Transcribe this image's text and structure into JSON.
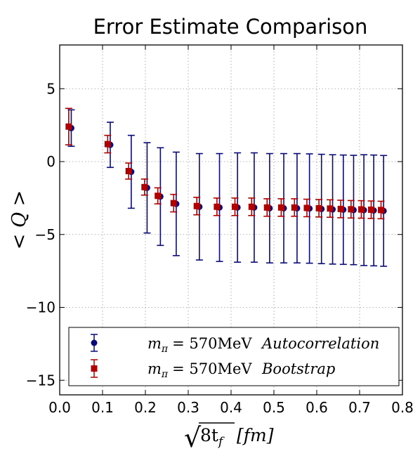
{
  "chart_data": {
    "type": "scatter",
    "title": "Error Estimate Comparison",
    "xlabel": "√8t_f [fm]",
    "xlabel_parts": {
      "radical": "√",
      "radicand": "8t",
      "subscript": "f",
      "unit": "[fm]"
    },
    "ylabel": "< Q >",
    "xlim": [
      0.0,
      0.8
    ],
    "ylim": [
      -16,
      8
    ],
    "x_ticks": [
      "0.0",
      "0.1",
      "0.2",
      "0.3",
      "0.4",
      "0.5",
      "0.6",
      "0.7",
      "0.8"
    ],
    "x_tick_values": [
      0.0,
      0.1,
      0.2,
      0.3,
      0.4,
      0.5,
      0.6,
      0.7,
      0.8
    ],
    "y_ticks": [
      "5",
      "0",
      "−5",
      "−10",
      "−15"
    ],
    "y_tick_values": [
      5,
      0,
      -5,
      -10,
      -15
    ],
    "grid": true,
    "legend_position": "bottom",
    "series": [
      {
        "name": "m_π = 570MeV    Autocorrelation",
        "label_mass": "m",
        "label_sub": "π",
        "label_eq": "= 570MeV",
        "label_method": "Autocorrelation",
        "color": "#0b0b78",
        "marker": "circle",
        "x": [
          0.027,
          0.118,
          0.167,
          0.204,
          0.235,
          0.272,
          0.326,
          0.373,
          0.415,
          0.454,
          0.49,
          0.523,
          0.554,
          0.583,
          0.611,
          0.637,
          0.662,
          0.686,
          0.71,
          0.733,
          0.756
        ],
        "y": [
          2.3,
          1.15,
          -0.7,
          -1.8,
          -2.4,
          -2.9,
          -3.1,
          -3.15,
          -3.15,
          -3.15,
          -3.2,
          -3.2,
          -3.2,
          -3.22,
          -3.25,
          -3.28,
          -3.3,
          -3.32,
          -3.33,
          -3.35,
          -3.38
        ],
        "err": [
          1.25,
          1.55,
          2.5,
          3.1,
          3.35,
          3.55,
          3.65,
          3.7,
          3.75,
          3.75,
          3.75,
          3.75,
          3.75,
          3.75,
          3.75,
          3.75,
          3.75,
          3.75,
          3.8,
          3.8,
          3.8
        ]
      },
      {
        "name": "m_π = 570MeV    Bootstrap",
        "label_mass": "m",
        "label_sub": "π",
        "label_eq": "= 570MeV",
        "label_method": "Bootstrap",
        "color": "#b10000",
        "marker": "square",
        "x": [
          0.021,
          0.112,
          0.161,
          0.198,
          0.229,
          0.266,
          0.32,
          0.367,
          0.409,
          0.448,
          0.484,
          0.517,
          0.548,
          0.577,
          0.605,
          0.631,
          0.656,
          0.68,
          0.704,
          0.727,
          0.75
        ],
        "y": [
          2.4,
          1.2,
          -0.65,
          -1.75,
          -2.35,
          -2.85,
          -3.05,
          -3.1,
          -3.1,
          -3.1,
          -3.15,
          -3.15,
          -3.15,
          -3.18,
          -3.2,
          -3.22,
          -3.25,
          -3.27,
          -3.28,
          -3.3,
          -3.32
        ],
        "err": [
          1.25,
          0.6,
          0.55,
          0.55,
          0.55,
          0.6,
          0.6,
          0.6,
          0.6,
          0.6,
          0.6,
          0.6,
          0.6,
          0.6,
          0.6,
          0.6,
          0.6,
          0.6,
          0.6,
          0.6,
          0.6
        ]
      }
    ]
  }
}
